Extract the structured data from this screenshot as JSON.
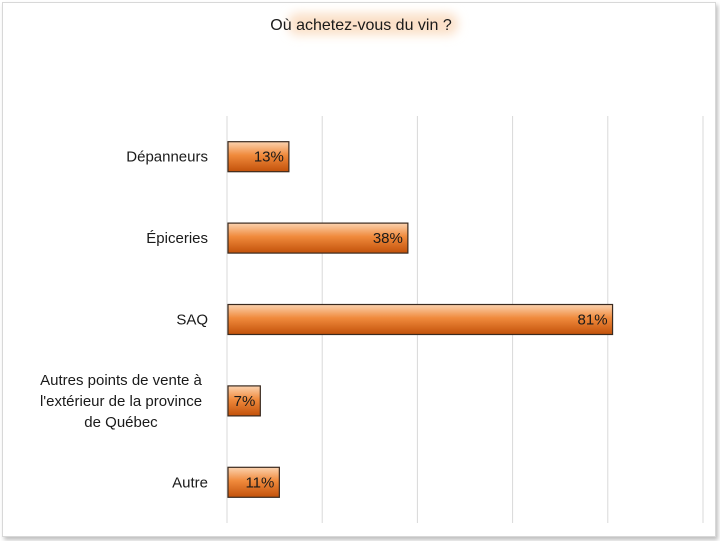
{
  "chart_data": {
    "type": "bar",
    "orientation": "horizontal",
    "title": "Où achetez-vous du vin ?",
    "categories": [
      [
        "Dépanneurs"
      ],
      [
        "Épiceries"
      ],
      [
        "SAQ"
      ],
      [
        "Autres points de vente à",
        "l'extérieur de la province",
        "de Québec"
      ],
      [
        "Autre"
      ]
    ],
    "values": [
      13,
      38,
      81,
      7,
      11
    ],
    "value_labels": [
      "13%",
      "38%",
      "81%",
      "7%",
      "11%"
    ],
    "xlim": [
      0,
      100
    ],
    "grid": true,
    "legend": "none",
    "colors": {
      "bar_dark": "#c2510a",
      "bar_mid": "#f08a3c",
      "bar_light": "#fbd3b0",
      "grid": "#d9d9d9",
      "title_glow": "#fbe0c8"
    }
  }
}
